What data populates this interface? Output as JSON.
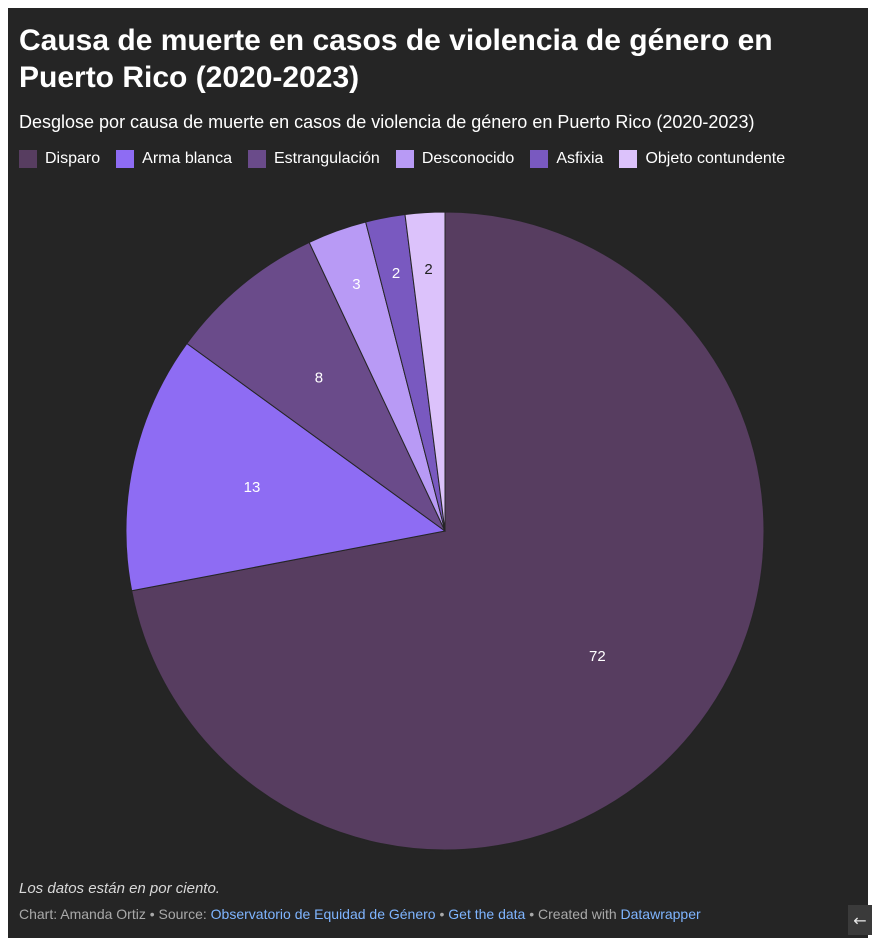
{
  "header": {
    "title": "Causa de muerte en casos de violencia de género en Puerto Rico (2020-2023)",
    "subtitle": "Desglose por causa de muerte en casos de violencia de género en Puerto Rico (2020-2023)"
  },
  "chart_data": {
    "type": "pie",
    "title": "Causa de muerte en casos de violencia de género en Puerto Rico (2020-2023)",
    "subtitle": "Desglose por causa de muerte en casos de violencia de género en Puerto Rico (2020-2023)",
    "unit_note": "Los datos están en por ciento.",
    "legend_placement": "top-left",
    "categories": [
      "Disparo",
      "Arma blanca",
      "Estrangulación",
      "Desconocido",
      "Asfixia",
      "Objeto contundente"
    ],
    "values": [
      72,
      13,
      8,
      3,
      2,
      2
    ],
    "colors": [
      "#573d60",
      "#8e6cf3",
      "#6a4b8a",
      "#b89af5",
      "#7959c0",
      "#dcc2fb"
    ],
    "label_colors": [
      "#ffffff",
      "#ffffff",
      "#ffffff",
      "#ffffff",
      "#ffffff",
      "#222222"
    ]
  },
  "notes": "Los datos están en por ciento.",
  "footer": {
    "chart_by": "Chart: Amanda Ortiz",
    "sep1": " • ",
    "source_label": "Source: ",
    "source_link": "Observatorio de Equidad de Género",
    "sep2": " • ",
    "get_data": "Get the data",
    "sep3": " • ",
    "created_with": "Created with ",
    "tool_link": "Datawrapper"
  },
  "nav": {
    "back_icon": "←"
  }
}
